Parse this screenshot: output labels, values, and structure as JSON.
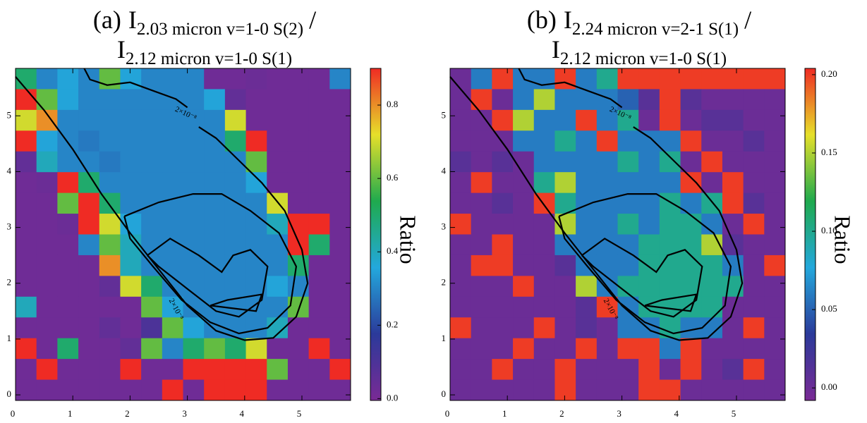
{
  "chart_data": [
    {
      "type": "heatmap",
      "title": {
        "panel_label": "(a)",
        "numerator": {
          "symbol": "I",
          "subscript": "2.03 micron v=1-0 S(2)"
        },
        "separator": "/",
        "denominator": {
          "symbol": "I",
          "subscript": "2.12 micron v=1-0 S(1)"
        }
      },
      "colorbar_label": "Ratio",
      "colormap": [
        "#7a2a95",
        "#2b3a9a",
        "#23a8dc",
        "#1faa4e",
        "#e6e02a",
        "#ef2b24"
      ],
      "xlim": [
        0,
        5.85
      ],
      "ylim": [
        -0.1,
        5.85
      ],
      "xticks": [
        0,
        1,
        2,
        3,
        4,
        5
      ],
      "yticks": [
        0,
        1,
        2,
        3,
        4,
        5
      ],
      "clim": [
        -0.005,
        0.9
      ],
      "cticks": [
        {
          "value": 0,
          "label": "0.0"
        },
        0.2,
        0.4,
        0.6,
        0.8
      ],
      "contour_label": {
        "value": 2e-08,
        "label": "2×10⁻⁸"
      },
      "contours": [
        {
          "x": [
            0,
            0.5,
            1,
            1.5,
            2,
            2.5,
            3,
            3.5,
            4,
            4.5,
            4.9,
            5.1,
            5.0,
            4.7,
            4.3,
            3.9,
            3.5,
            3.2
          ],
          "y": [
            5.7,
            5.1,
            4.4,
            3.6,
            2.9,
            2.25,
            1.6,
            1.15,
            0.98,
            1.02,
            1.4,
            2.0,
            2.6,
            3.3,
            3.8,
            4.2,
            4.6,
            4.8
          ]
        },
        {
          "x": [
            1.2,
            1.3,
            1.6,
            2.0,
            2.4,
            2.8,
            3.0
          ],
          "y": [
            5.85,
            5.65,
            5.55,
            5.6,
            5.45,
            5.3,
            5.15
          ]
        },
        {
          "x": [
            1.9,
            2.5,
            3.1,
            3.6,
            4.1,
            4.6,
            4.9,
            4.8,
            4.4,
            3.9,
            3.4,
            2.9,
            2.4,
            2.0,
            1.9
          ],
          "y": [
            3.2,
            3.45,
            3.6,
            3.6,
            3.3,
            2.9,
            2.3,
            1.6,
            1.2,
            1.1,
            1.3,
            1.7,
            2.3,
            2.8,
            3.2
          ]
        },
        {
          "x": [
            2.3,
            2.7,
            3.2,
            3.6,
            3.8,
            4.1,
            4.4,
            4.3,
            3.9,
            3.5,
            3.0,
            2.5,
            2.3
          ],
          "y": [
            2.5,
            2.8,
            2.5,
            2.2,
            2.5,
            2.6,
            2.3,
            1.7,
            1.4,
            1.5,
            1.9,
            2.3,
            2.5
          ]
        },
        {
          "x": [
            3.4,
            3.7,
            4.3,
            4.2,
            3.8,
            3.4
          ],
          "y": [
            1.6,
            1.7,
            1.8,
            1.5,
            1.55,
            1.6
          ]
        }
      ],
      "z": [
        [
          0.5,
          0.3,
          0.35,
          0.3,
          0.6,
          0.35,
          0.3,
          0.3,
          0.3,
          0.02,
          0.02,
          0.03,
          0.02,
          0.02,
          0.02,
          0.3
        ],
        [
          0.9,
          0.6,
          0.35,
          0.3,
          0.3,
          0.3,
          0.3,
          0.3,
          0.3,
          0.35,
          0.05,
          0.02,
          0.02,
          0.02,
          0.02,
          0.02
        ],
        [
          0.7,
          0.8,
          0.3,
          0.3,
          0.3,
          0.3,
          0.3,
          0.3,
          0.3,
          0.3,
          0.7,
          0.02,
          0.02,
          0.02,
          0.02,
          0.02
        ],
        [
          0.9,
          0.35,
          0.3,
          0.28,
          0.3,
          0.3,
          0.3,
          0.3,
          0.3,
          0.3,
          0.5,
          0.9,
          0.02,
          0.02,
          0.02,
          0.02
        ],
        [
          0.05,
          0.4,
          0.3,
          0.3,
          0.28,
          0.3,
          0.3,
          0.3,
          0.3,
          0.3,
          0.3,
          0.6,
          0.02,
          0.02,
          0.02,
          0.02
        ],
        [
          0.02,
          0.03,
          0.9,
          0.5,
          0.3,
          0.3,
          0.3,
          0.3,
          0.3,
          0.3,
          0.3,
          0.35,
          0.02,
          0.02,
          0.02,
          0.02
        ],
        [
          0.02,
          0.02,
          0.6,
          0.9,
          0.5,
          0.3,
          0.3,
          0.3,
          0.3,
          0.3,
          0.3,
          0.3,
          0.7,
          0.02,
          0.02,
          0.02
        ],
        [
          0.02,
          0.02,
          0.03,
          0.9,
          0.7,
          0.35,
          0.3,
          0.3,
          0.3,
          0.3,
          0.3,
          0.3,
          0.4,
          0.9,
          0.9,
          0.02
        ],
        [
          0.02,
          0.02,
          0.02,
          0.3,
          0.6,
          0.4,
          0.3,
          0.3,
          0.3,
          0.3,
          0.3,
          0.3,
          0.3,
          0.9,
          0.5,
          0.02
        ],
        [
          0.02,
          0.02,
          0.02,
          0.02,
          0.8,
          0.4,
          0.3,
          0.3,
          0.3,
          0.3,
          0.3,
          0.3,
          0.3,
          0.5,
          0.02,
          0.02
        ],
        [
          0.02,
          0.02,
          0.02,
          0.02,
          0.05,
          0.7,
          0.5,
          0.3,
          0.3,
          0.3,
          0.3,
          0.3,
          0.35,
          0.3,
          0.02,
          0.02
        ],
        [
          0.4,
          0.02,
          0.02,
          0.02,
          0.02,
          0.02,
          0.6,
          0.35,
          0.3,
          0.3,
          0.3,
          0.3,
          0.3,
          0.6,
          0.02,
          0.02
        ],
        [
          0.02,
          0.02,
          0.02,
          0.02,
          0.05,
          0.02,
          0.1,
          0.6,
          0.35,
          0.3,
          0.3,
          0.3,
          0.4,
          0.02,
          0.02,
          0.02
        ],
        [
          0.9,
          0.02,
          0.5,
          0.02,
          0.02,
          0.05,
          0.6,
          0.3,
          0.5,
          0.6,
          0.5,
          0.7,
          0.02,
          0.02,
          0.9,
          0.02
        ],
        [
          0.02,
          0.9,
          0.02,
          0.02,
          0.02,
          0.9,
          0.02,
          0.02,
          0.9,
          0.9,
          0.9,
          0.9,
          0.6,
          0.02,
          0.02,
          0.9
        ],
        [
          0.02,
          0.02,
          0.02,
          0.02,
          0.02,
          0.02,
          0.02,
          0.9,
          0.02,
          0.9,
          0.9,
          0.9,
          0.02,
          0.02,
          0.02,
          0.02
        ]
      ]
    },
    {
      "type": "heatmap",
      "title": {
        "panel_label": "(b)",
        "numerator": {
          "symbol": "I",
          "subscript": "2.24 micron v=2-1 S(1)"
        },
        "separator": "/",
        "denominator": {
          "symbol": "I",
          "subscript": "2.12 micron v=1-0 S(1)"
        }
      },
      "colorbar_label": "Ratio",
      "colormap": [
        "#7a2a95",
        "#2b3a9a",
        "#23a8dc",
        "#1faa4e",
        "#e6e02a",
        "#ef2b24"
      ],
      "xlim": [
        0,
        5.85
      ],
      "ylim": [
        -0.1,
        5.85
      ],
      "xticks": [
        0,
        1,
        2,
        3,
        4,
        5
      ],
      "yticks": [
        0,
        1,
        2,
        3,
        4,
        5
      ],
      "clim": [
        -0.008,
        0.204
      ],
      "cticks": [
        {
          "value": 0,
          "label": "0.00"
        },
        0.05,
        {
          "value": 0.1,
          "label": "0.10"
        },
        0.15,
        {
          "value": 0.2,
          "label": "0.20"
        }
      ],
      "contour_label": {
        "value": 2e-08,
        "label": "2×10⁻⁸"
      },
      "contours": [
        {
          "x": [
            0,
            0.5,
            1,
            1.5,
            2,
            2.5,
            3,
            3.5,
            4,
            4.5,
            4.9,
            5.1,
            5.0,
            4.7,
            4.3,
            3.9,
            3.5,
            3.2
          ],
          "y": [
            5.7,
            5.1,
            4.4,
            3.6,
            2.9,
            2.25,
            1.6,
            1.15,
            0.98,
            1.02,
            1.4,
            2.0,
            2.6,
            3.3,
            3.8,
            4.2,
            4.6,
            4.8
          ]
        },
        {
          "x": [
            1.2,
            1.3,
            1.6,
            2.0,
            2.4,
            2.8,
            3.0
          ],
          "y": [
            5.85,
            5.65,
            5.55,
            5.6,
            5.45,
            5.3,
            5.15
          ]
        },
        {
          "x": [
            1.9,
            2.5,
            3.1,
            3.6,
            4.1,
            4.6,
            4.9,
            4.8,
            4.4,
            3.9,
            3.4,
            2.9,
            2.4,
            2.0,
            1.9
          ],
          "y": [
            3.2,
            3.45,
            3.6,
            3.6,
            3.3,
            2.9,
            2.3,
            1.6,
            1.2,
            1.1,
            1.3,
            1.7,
            2.3,
            2.8,
            3.2
          ]
        },
        {
          "x": [
            2.3,
            2.7,
            3.2,
            3.6,
            3.8,
            4.1,
            4.4,
            4.3,
            3.9,
            3.5,
            3.0,
            2.5,
            2.3
          ],
          "y": [
            2.5,
            2.8,
            2.5,
            2.2,
            2.5,
            2.6,
            2.3,
            1.7,
            1.4,
            1.5,
            1.9,
            2.3,
            2.5
          ]
        },
        {
          "x": [
            3.4,
            3.7,
            4.3,
            4.2,
            3.8,
            3.4
          ],
          "y": [
            1.6,
            1.7,
            1.8,
            1.5,
            1.55,
            1.6
          ]
        }
      ],
      "z": [
        [
          0.0,
          0.06,
          0.2,
          0.06,
          0.06,
          0.2,
          0.06,
          0.1,
          0.2,
          0.2,
          0.2,
          0.2,
          0.2,
          0.2,
          0.2,
          0.2
        ],
        [
          0.0,
          0.2,
          0.0,
          0.06,
          0.15,
          0.06,
          0.06,
          0.06,
          0.05,
          0.01,
          0.2,
          0.01,
          0.0,
          0.0,
          0.0,
          0.0
        ],
        [
          0.0,
          0.0,
          0.2,
          0.15,
          0.06,
          0.06,
          0.2,
          0.06,
          0.1,
          0.0,
          0.2,
          0.0,
          0.01,
          0.01,
          0.0,
          0.0
        ],
        [
          0.0,
          0.0,
          0.0,
          0.06,
          0.06,
          0.1,
          0.06,
          0.2,
          0.06,
          0.06,
          0.06,
          0.2,
          0.0,
          0.0,
          0.01,
          0.0
        ],
        [
          0.01,
          0.0,
          0.01,
          0.0,
          0.06,
          0.06,
          0.06,
          0.06,
          0.1,
          0.06,
          0.1,
          0.0,
          0.2,
          0.0,
          0.0,
          0.0
        ],
        [
          0.0,
          0.2,
          0.0,
          0.0,
          0.1,
          0.15,
          0.06,
          0.06,
          0.06,
          0.06,
          0.06,
          0.2,
          0.0,
          0.2,
          0.0,
          0.0
        ],
        [
          0.0,
          0.0,
          0.01,
          0.0,
          0.2,
          0.1,
          0.06,
          0.06,
          0.06,
          0.06,
          0.1,
          0.06,
          0.1,
          0.2,
          0.01,
          0.0
        ],
        [
          0.2,
          0.0,
          0.0,
          0.0,
          0.0,
          0.15,
          0.06,
          0.06,
          0.1,
          0.06,
          0.1,
          0.1,
          0.06,
          0.0,
          0.2,
          0.0
        ],
        [
          0.0,
          0.0,
          0.2,
          0.0,
          0.0,
          0.06,
          0.06,
          0.06,
          0.06,
          0.1,
          0.1,
          0.1,
          0.15,
          0.01,
          0.0,
          0.0
        ],
        [
          0.0,
          0.2,
          0.2,
          0.0,
          0.0,
          0.01,
          0.06,
          0.06,
          0.06,
          0.1,
          0.1,
          0.1,
          0.1,
          0.06,
          0.0,
          0.2
        ],
        [
          0.0,
          0.0,
          0.0,
          0.2,
          0.0,
          0.0,
          0.15,
          0.06,
          0.1,
          0.1,
          0.1,
          0.1,
          0.1,
          0.1,
          0.0,
          0.0
        ],
        [
          0.0,
          0.0,
          0.0,
          0.0,
          0.0,
          0.0,
          0.01,
          0.2,
          0.06,
          0.1,
          0.1,
          0.1,
          0.1,
          0.0,
          0.0,
          0.0
        ],
        [
          0.2,
          0.0,
          0.0,
          0.0,
          0.2,
          0.0,
          0.01,
          0.0,
          0.06,
          0.06,
          0.1,
          0.06,
          0.06,
          0.0,
          0.2,
          0.0
        ],
        [
          0.0,
          0.0,
          0.0,
          0.2,
          0.0,
          0.0,
          0.2,
          0.0,
          0.2,
          0.2,
          0.06,
          0.2,
          0.0,
          0.0,
          0.0,
          0.0
        ],
        [
          0.0,
          0.0,
          0.2,
          0.0,
          0.0,
          0.2,
          0.0,
          0.0,
          0.0,
          0.2,
          0.0,
          0.2,
          0.0,
          0.01,
          0.2,
          0.0
        ],
        [
          0.0,
          0.0,
          0.0,
          0.0,
          0.0,
          0.2,
          0.0,
          0.0,
          0.0,
          0.2,
          0.2,
          0.0,
          0.0,
          0.0,
          0.0,
          0.0
        ]
      ]
    }
  ]
}
